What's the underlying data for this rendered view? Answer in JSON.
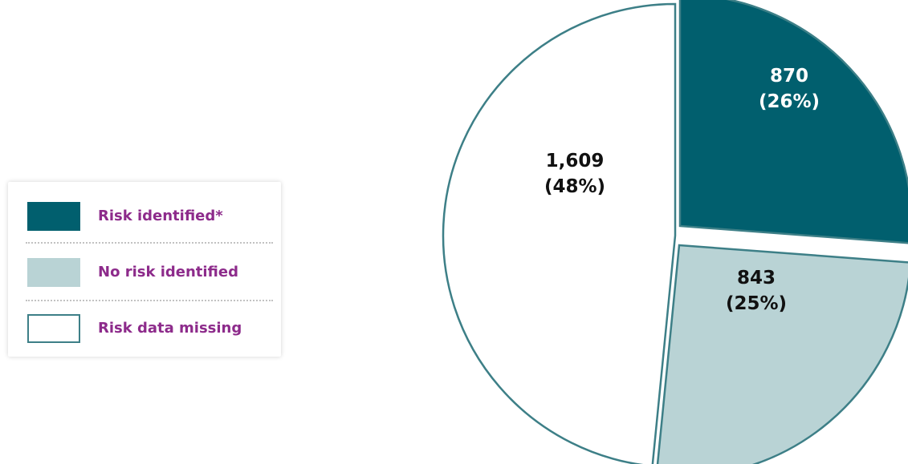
{
  "chart_data": {
    "type": "pie",
    "slices": [
      {
        "label": "Risk identified*",
        "value": 870,
        "value_text": "870",
        "percent_text": "(26%)",
        "color": "#015f6e"
      },
      {
        "label": "No risk identified",
        "value": 843,
        "value_text": "843",
        "percent_text": "(25%)",
        "color": "#b9d3d5"
      },
      {
        "label": "Risk data missing",
        "value": 1609,
        "value_text": "1,609",
        "percent_text": "(48%)",
        "color": "#ffffff"
      }
    ],
    "legend_position": "left",
    "outline_color": "#3d7f87",
    "label_colors": [
      "#ffffff",
      "#111111",
      "#111111"
    ]
  },
  "legend": {
    "label_color": "#8d2b8b",
    "items": [
      {
        "label": "Risk identified*",
        "swatch": "#015f6e"
      },
      {
        "label": "No risk identified",
        "swatch": "#b9d3d5"
      },
      {
        "label": "Risk data missing",
        "swatch": "#ffffff"
      }
    ]
  }
}
